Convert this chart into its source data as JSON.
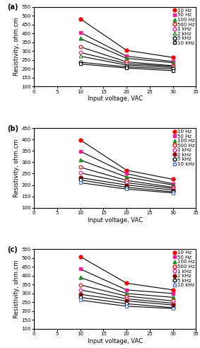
{
  "x_values": [
    10,
    20,
    30
  ],
  "xlim": [
    0,
    35
  ],
  "xticks": [
    0,
    5,
    10,
    15,
    20,
    25,
    30,
    35
  ],
  "xlabel": "Input voltage, VAC",
  "ylabel": "Resistivity, ohm.cm",
  "panel_a": {
    "label": "(a)",
    "ylim": [
      100,
      550
    ],
    "yticks": [
      100,
      150,
      200,
      250,
      300,
      350,
      400,
      450,
      500,
      550
    ],
    "series": [
      {
        "label": "10 Hz",
        "values": [
          483,
          305,
          265
        ],
        "color": "#FF0000",
        "marker": "o",
        "filled": true,
        "markersize": 3.5
      },
      {
        "label": "50 Hz",
        "values": [
          406,
          272,
          242
        ],
        "color": "#FF1493",
        "marker": "s",
        "filled": true,
        "markersize": 3.5
      },
      {
        "label": "100 Hz",
        "values": [
          372,
          260,
          235
        ],
        "color": "#228B22",
        "marker": "^",
        "filled": true,
        "markersize": 3.5
      },
      {
        "label": "500 Hz",
        "values": [
          325,
          240,
          218
        ],
        "color": "#FF0000",
        "marker": "o",
        "filled": false,
        "markersize": 3.5
      },
      {
        "label": "1 kHz",
        "values": [
          293,
          230,
          215
        ],
        "color": "#FF1493",
        "marker": "o",
        "filled": false,
        "markersize": 3.5
      },
      {
        "label": "2 kHz",
        "values": [
          272,
          222,
          208
        ],
        "color": "#228B22",
        "marker": "^",
        "filled": false,
        "markersize": 3.5
      },
      {
        "label": "5 kHz",
        "values": [
          238,
          212,
          200
        ],
        "color": "#000000",
        "marker": "o",
        "filled": false,
        "markersize": 3.5
      },
      {
        "label": "10 kHz",
        "values": [
          228,
          205,
          190
        ],
        "color": "#000000",
        "marker": "s",
        "filled": false,
        "markersize": 3.5
      }
    ]
  },
  "panel_b": {
    "label": "(b)",
    "ylim": [
      100,
      450
    ],
    "yticks": [
      100,
      150,
      200,
      250,
      300,
      350,
      400,
      450
    ],
    "series": [
      {
        "label": "10 Hz",
        "values": [
          398,
          265,
          225
        ],
        "color": "#FF0000",
        "marker": "o",
        "filled": true,
        "markersize": 3.5
      },
      {
        "label": "50 Hz",
        "values": [
          348,
          250,
          205
        ],
        "color": "#FF1493",
        "marker": "s",
        "filled": true,
        "markersize": 3.5
      },
      {
        "label": "100 Hz",
        "values": [
          310,
          235,
          200
        ],
        "color": "#228B22",
        "marker": "^",
        "filled": true,
        "markersize": 3.5
      },
      {
        "label": "500 Hz",
        "values": [
          278,
          220,
          190
        ],
        "color": "#FF0000",
        "marker": "o",
        "filled": false,
        "markersize": 3.5
      },
      {
        "label": "1 kHz",
        "values": [
          253,
          210,
          185
        ],
        "color": "#FF1493",
        "marker": "o",
        "filled": false,
        "markersize": 3.5
      },
      {
        "label": "2 kHz",
        "values": [
          232,
          200,
          178
        ],
        "color": "#8B0000",
        "marker": "o",
        "filled": true,
        "markersize": 3.5
      },
      {
        "label": "5 kHz",
        "values": [
          222,
          190,
          170
        ],
        "color": "#000000",
        "marker": "o",
        "filled": false,
        "markersize": 3.5
      },
      {
        "label": "10 kHz",
        "values": [
          210,
          182,
          165
        ],
        "color": "#4169E1",
        "marker": "s",
        "filled": false,
        "markersize": 3.5
      }
    ]
  },
  "panel_c": {
    "label": "(c)",
    "ylim": [
      100,
      550
    ],
    "yticks": [
      100,
      150,
      200,
      250,
      300,
      350,
      400,
      450,
      500,
      550
    ],
    "series": [
      {
        "label": "10 Hz",
        "values": [
          508,
          358,
          320
        ],
        "color": "#FF0000",
        "marker": "o",
        "filled": true,
        "markersize": 3.5
      },
      {
        "label": "50 Hz",
        "values": [
          438,
          320,
          300
        ],
        "color": "#FF1493",
        "marker": "s",
        "filled": true,
        "markersize": 3.5
      },
      {
        "label": "100 Hz",
        "values": [
          390,
          300,
          278
        ],
        "color": "#228B22",
        "marker": "^",
        "filled": true,
        "markersize": 3.5
      },
      {
        "label": "500 Hz",
        "values": [
          348,
          285,
          258
        ],
        "color": "#FF0000",
        "marker": "o",
        "filled": false,
        "markersize": 3.5
      },
      {
        "label": "1 kHz",
        "values": [
          320,
          270,
          245
        ],
        "color": "#FF1493",
        "marker": "o",
        "filled": false,
        "markersize": 3.5
      },
      {
        "label": "2 kHz",
        "values": [
          295,
          258,
          235
        ],
        "color": "#8B0000",
        "marker": "o",
        "filled": true,
        "markersize": 3.5
      },
      {
        "label": "5 kHz",
        "values": [
          278,
          242,
          220
        ],
        "color": "#000000",
        "marker": "o",
        "filled": false,
        "markersize": 3.5
      },
      {
        "label": "10 kHz",
        "values": [
          262,
          228,
          215
        ],
        "color": "#4169E1",
        "marker": "s",
        "filled": false,
        "markersize": 3.5
      }
    ]
  },
  "fontsize": 5,
  "tick_fontsize": 5,
  "label_fontsize": 6,
  "linewidth": 0.8
}
